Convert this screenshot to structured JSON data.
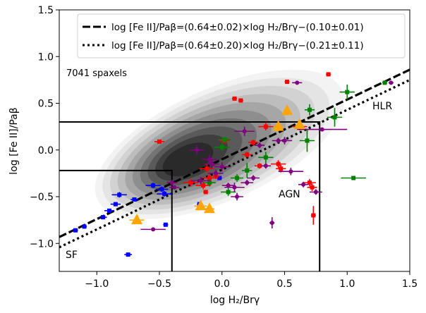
{
  "chart_data": {
    "type": "scatter",
    "xlabel": "log H₂/Brγ",
    "ylabel": "log [Fe II]/Paβ",
    "xlim": [
      -1.3,
      1.5
    ],
    "ylim": [
      -1.3,
      1.5
    ],
    "xticks": [
      -1.0,
      -0.5,
      0.0,
      0.5,
      1.0,
      1.5
    ],
    "yticks": [
      -1.0,
      -0.5,
      0.0,
      0.5,
      1.0,
      1.5
    ],
    "xtick_labels": [
      "−1.0",
      "−0.5",
      "0.0",
      "0.5",
      "1.0",
      "1.5"
    ],
    "ytick_labels": [
      "−1.0",
      "−0.5",
      "0.0",
      "0.5",
      "1.0",
      "1.5"
    ],
    "legend_location": "top-right",
    "annotations": {
      "spaxels": "7041 spaxels",
      "hlr": "HLR",
      "agn": "AGN",
      "sf": "SF"
    },
    "fits": [
      {
        "label": "log [Fe II]/Paβ=(0.64±0.02)×log H₂/Brγ−(0.10±0.01)",
        "slope": 0.64,
        "intercept": -0.1,
        "style": "dashed"
      },
      {
        "label": "log [Fe II]/Paβ=(0.64±0.20)×log H₂/Brγ−(0.21±0.11)",
        "slope": 0.64,
        "intercept": -0.21,
        "style": "dotted"
      }
    ],
    "regions": {
      "sf_box": {
        "x": [
          -1.3,
          -0.4
        ],
        "y": [
          -1.3,
          -0.22
        ]
      },
      "agn_box": {
        "x": [
          -1.3,
          0.78
        ],
        "y": [
          -1.3,
          0.3
        ]
      }
    },
    "density_peak": {
      "x": -0.3,
      "y": -0.12
    },
    "colors": {
      "blue": "#0000ff",
      "red": "#ff0000",
      "green": "#008000",
      "purple": "#800080",
      "orange": "#ffa500"
    },
    "series": [
      {
        "name": "blue",
        "color": "blue",
        "marker": "square",
        "points": [
          [
            -1.17,
            -0.86,
            0.02,
            0.02
          ],
          [
            -1.1,
            -0.82,
            0.02,
            0.02
          ],
          [
            -0.95,
            -0.72,
            0.03,
            0.02
          ],
          [
            -0.9,
            -0.65,
            0.04,
            0.02
          ],
          [
            -0.85,
            -0.58,
            0.04,
            0.02
          ],
          [
            -0.82,
            -0.48,
            0.06,
            0.03
          ],
          [
            -0.75,
            -1.12,
            0.03,
            0.02
          ],
          [
            -0.7,
            -0.53,
            0.03,
            0.02
          ],
          [
            -0.55,
            -0.38,
            0.06,
            0.03
          ],
          [
            -0.48,
            -0.42,
            0.05,
            0.03
          ],
          [
            -0.46,
            -0.47,
            0.06,
            0.03
          ],
          [
            -0.45,
            -0.8,
            0.02,
            0.02
          ],
          [
            -0.18,
            -0.58,
            0.02,
            0.02
          ],
          [
            -0.02,
            -0.3,
            0.02,
            0.02
          ]
        ]
      },
      {
        "name": "red",
        "color": "red",
        "marker": "square",
        "points": [
          [
            -0.5,
            0.09,
            0.04,
            0.0
          ],
          [
            -0.25,
            -0.35,
            0.06,
            0.04
          ],
          [
            -0.15,
            -0.38,
            0.06,
            0.04
          ],
          [
            -0.13,
            -0.45,
            0.02,
            0.02
          ],
          [
            -0.12,
            -0.2,
            0.06,
            0.04
          ],
          [
            -0.1,
            -0.3,
            0.06,
            0.04
          ],
          [
            -0.05,
            -0.28,
            0.03,
            0.03
          ],
          [
            0.02,
            0.1,
            0.04,
            0.03
          ],
          [
            0.1,
            0.55,
            0.02,
            0.02
          ],
          [
            0.15,
            0.53,
            0.02,
            0.02
          ],
          [
            0.2,
            -0.05,
            0.04,
            0.03
          ],
          [
            0.25,
            0.08,
            0.04,
            0.03
          ],
          [
            0.3,
            -0.17,
            0.04,
            0.03
          ],
          [
            0.35,
            0.25,
            0.06,
            0.04
          ],
          [
            0.45,
            -0.15,
            0.06,
            0.04
          ],
          [
            0.47,
            -0.2,
            0.04,
            0.04
          ],
          [
            0.52,
            0.73,
            0.02,
            0.02
          ],
          [
            0.62,
            0.25,
            0.06,
            0.04
          ],
          [
            0.7,
            -0.35,
            0.05,
            0.04
          ],
          [
            0.72,
            -0.4,
            0.04,
            0.04
          ],
          [
            0.73,
            -0.7,
            0.02,
            0.1
          ],
          [
            0.85,
            0.81,
            0.02,
            0.02
          ]
        ]
      },
      {
        "name": "green",
        "color": "green",
        "marker": "square",
        "points": [
          [
            -0.1,
            -0.35,
            0.05,
            0.04
          ],
          [
            0.0,
            0.03,
            0.06,
            0.04
          ],
          [
            0.02,
            0.11,
            0.05,
            0.03
          ],
          [
            0.05,
            -0.45,
            0.06,
            0.04
          ],
          [
            0.12,
            -0.3,
            0.05,
            0.04
          ],
          [
            0.2,
            -0.22,
            0.04,
            0.08
          ],
          [
            0.35,
            -0.08,
            0.06,
            0.06
          ],
          [
            0.68,
            0.1,
            0.06,
            0.12
          ],
          [
            0.7,
            0.43,
            0.04,
            0.06
          ],
          [
            0.9,
            0.35,
            0.06,
            0.1
          ],
          [
            1.0,
            0.62,
            0.06,
            0.08
          ],
          [
            1.05,
            -0.3,
            0.1,
            0.02
          ],
          [
            1.3,
            0.72,
            0.02,
            0.02
          ]
        ]
      },
      {
        "name": "purple",
        "color": "purple",
        "marker": "circle",
        "points": [
          [
            -0.55,
            -0.85,
            0.1,
            0.02
          ],
          [
            -0.4,
            -0.35,
            0.04,
            0.03
          ],
          [
            -0.38,
            -0.4,
            0.04,
            0.02
          ],
          [
            -0.2,
            0.0,
            0.06,
            0.05
          ],
          [
            -0.17,
            -0.33,
            0.08,
            0.04
          ],
          [
            -0.1,
            -0.1,
            0.06,
            0.05
          ],
          [
            -0.08,
            -0.15,
            0.06,
            0.05
          ],
          [
            -0.05,
            -0.25,
            0.06,
            0.04
          ],
          [
            0.0,
            -0.18,
            0.06,
            0.05
          ],
          [
            0.05,
            -0.38,
            0.05,
            0.03
          ],
          [
            0.1,
            -0.4,
            0.08,
            0.05
          ],
          [
            0.12,
            -0.5,
            0.05,
            0.04
          ],
          [
            0.18,
            0.2,
            0.08,
            0.05
          ],
          [
            0.2,
            -0.35,
            0.05,
            0.03
          ],
          [
            0.25,
            -0.3,
            0.05,
            0.03
          ],
          [
            0.3,
            0.05,
            0.04,
            0.03
          ],
          [
            0.35,
            -0.17,
            0.04,
            0.03
          ],
          [
            0.4,
            -0.78,
            0.02,
            0.06
          ],
          [
            0.45,
            0.1,
            0.05,
            0.03
          ],
          [
            0.5,
            0.1,
            0.06,
            0.04
          ],
          [
            0.55,
            -0.23,
            0.1,
            0.04
          ],
          [
            0.6,
            0.72,
            0.04,
            0.02
          ],
          [
            0.65,
            -0.37,
            0.04,
            0.03
          ],
          [
            0.75,
            -0.45,
            0.05,
            0.03
          ],
          [
            0.8,
            0.22,
            0.2,
            0.02
          ],
          [
            1.35,
            0.72,
            0.02,
            0.02
          ]
        ]
      },
      {
        "name": "orange",
        "color": "orange",
        "marker": "triangle",
        "points": [
          [
            -0.68,
            -0.75,
            0.06,
            0.04
          ],
          [
            -0.17,
            -0.6,
            0.05,
            0.04
          ],
          [
            -0.1,
            -0.63,
            0.04,
            0.04
          ],
          [
            0.45,
            0.25,
            0.04,
            0.03
          ],
          [
            0.52,
            0.42,
            0.02,
            0.02
          ],
          [
            0.62,
            0.27,
            0.02,
            0.02
          ]
        ]
      }
    ]
  }
}
